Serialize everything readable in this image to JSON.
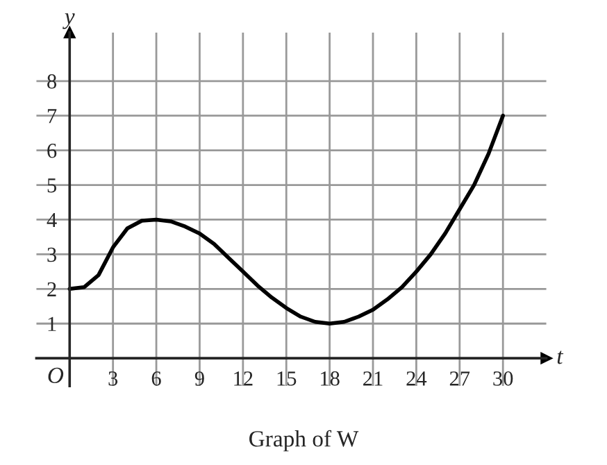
{
  "chart_data": {
    "type": "line",
    "xlabel": "t",
    "ylabel": "y",
    "annotations": [
      "O",
      "Graph of W"
    ],
    "x": [
      0,
      1,
      2,
      3,
      4,
      5,
      6,
      7,
      8,
      9,
      10,
      11,
      12,
      13,
      14,
      15,
      16,
      17,
      18,
      19,
      20,
      21,
      22,
      23,
      24,
      25,
      26,
      27,
      28,
      29,
      30
    ],
    "series": [
      {
        "color": "#000000",
        "values": [
          2,
          2.05,
          2.4,
          3.2,
          3.75,
          3.97,
          4,
          3.95,
          3.8,
          3.6,
          3.3,
          2.9,
          2.5,
          2.1,
          1.75,
          1.45,
          1.2,
          1.05,
          1,
          1.05,
          1.2,
          1.4,
          1.7,
          2.05,
          2.5,
          3.0,
          3.6,
          4.3,
          5.0,
          5.9,
          7
        ]
      }
    ],
    "xlim": [
      -2.3,
      33
    ],
    "ylim": [
      -0.8,
      9.4
    ],
    "xticks": [
      3,
      6,
      9,
      12,
      15,
      18,
      21,
      24,
      27,
      30
    ],
    "yticks": [
      1,
      2,
      3,
      4,
      5,
      6,
      7,
      8
    ],
    "grid": true,
    "legend": false,
    "marker": "none",
    "line_style": "solid"
  }
}
